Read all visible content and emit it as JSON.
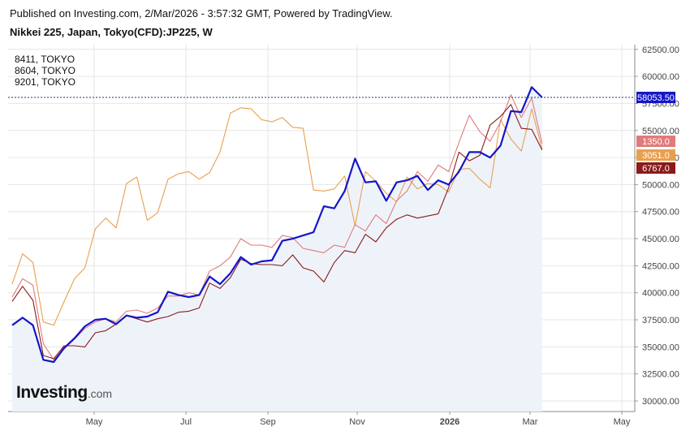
{
  "header": {
    "published": "Published on Investing.com, 2/Mar/2026 - 3:57:32 GMT, Powered by TradingView.",
    "title": "Nikkei 225, Japan, Tokyo(CFD):JP225, W"
  },
  "legend": [
    "8411, TOKYO",
    "8604, TOKYO",
    "9201, TOKYO"
  ],
  "logo": {
    "main": "Investing",
    "suffix": ".com"
  },
  "colors": {
    "nikkei": "#1515c8",
    "s8411": "#e07b7b",
    "s8604": "#8b1a1a",
    "s9201": "#e8a050",
    "area": "#eef3fa",
    "grid": "#e6e6e6"
  },
  "chart_data": {
    "type": "line",
    "x_ticks": [
      "May",
      "Jul",
      "Sep",
      "Nov",
      "2026",
      "Mar",
      "May"
    ],
    "y_ticks": [
      "30000.00",
      "32500.00",
      "35000.00",
      "37500.00",
      "40000.00",
      "42500.00",
      "45000.00",
      "47500.00",
      "50000.00",
      "52500.00",
      "55000.00",
      "57500.00",
      "60000.00",
      "62500.00"
    ],
    "ylim": [
      30000,
      62500
    ],
    "series": [
      {
        "name": "Nikkei 225",
        "color": "#1515c8",
        "last_label": "58053.50",
        "values": [
          37000,
          37700,
          37000,
          33800,
          33600,
          34900,
          35800,
          36900,
          37500,
          37600,
          37100,
          37900,
          37700,
          37800,
          38200,
          40100,
          39800,
          39600,
          39800,
          41500,
          40800,
          41800,
          43300,
          42600,
          42900,
          43000,
          44800,
          45000,
          45300,
          45600,
          48000,
          47800,
          49400,
          52400,
          50200,
          50300,
          48500,
          50200,
          50400,
          50800,
          49500,
          50400,
          50000,
          51200,
          53000,
          53000,
          52500,
          53600,
          56800,
          56700,
          59000,
          58054
        ]
      },
      {
        "name": "8411, TOKYO",
        "color": "#e07b7b",
        "last_label": "1350.0",
        "values": [
          39600,
          41300,
          40700,
          35300,
          33800,
          34800,
          35700,
          36700,
          37300,
          37600,
          37300,
          38300,
          38400,
          38100,
          38600,
          39700,
          39700,
          40000,
          39800,
          42000,
          42500,
          43300,
          45000,
          44400,
          44400,
          44200,
          45300,
          45100,
          44100,
          43900,
          43700,
          44400,
          44200,
          46300,
          45700,
          47200,
          46400,
          48500,
          49400,
          51200,
          50300,
          51800,
          51200,
          53900,
          56400,
          54900,
          54000,
          55800,
          58300,
          56200,
          58000,
          53800
        ]
      },
      {
        "name": "8604, TOKYO",
        "color": "#8b1a1a",
        "last_label": "6767.0",
        "values": [
          39200,
          40600,
          39300,
          34200,
          33900,
          35100,
          35100,
          35000,
          36300,
          36500,
          37100,
          37900,
          37600,
          37300,
          37600,
          37800,
          38200,
          38300,
          38600,
          40900,
          40400,
          41400,
          43100,
          42700,
          42600,
          42600,
          42500,
          43500,
          42300,
          42000,
          41000,
          42800,
          43900,
          43700,
          45400,
          44700,
          46000,
          46800,
          47200,
          46900,
          47100,
          47300,
          49700,
          53000,
          52200,
          52700,
          55500,
          56300,
          57400,
          55200,
          55100,
          53200
        ]
      },
      {
        "name": "9201, TOKYO",
        "color": "#e8a050",
        "last_label": "3051.0",
        "values": [
          40800,
          43600,
          42800,
          37300,
          37000,
          39200,
          41300,
          42300,
          45900,
          46900,
          46000,
          50100,
          50700,
          46700,
          47400,
          50500,
          51000,
          51200,
          50500,
          51100,
          53000,
          56600,
          57100,
          57000,
          56000,
          55800,
          56200,
          55300,
          55200,
          49500,
          49400,
          49600,
          50800,
          46200,
          51200,
          50300,
          49200,
          48400,
          50700,
          49600,
          50100,
          50000,
          49300,
          51400,
          51500,
          50500,
          49700,
          56000,
          54200,
          53100,
          57000,
          53300
        ]
      }
    ]
  }
}
